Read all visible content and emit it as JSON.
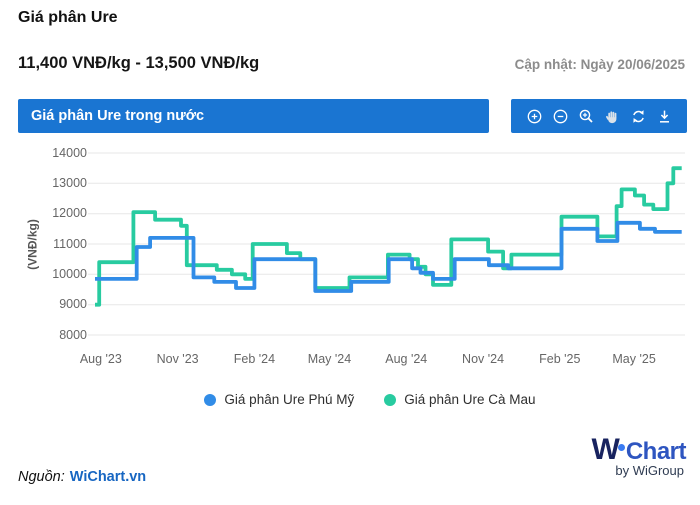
{
  "header": {
    "title": "Giá phân Ure",
    "price_range": "11,400 VNĐ/kg - 13,500 VNĐ/kg",
    "updated": "Cập nhật: Ngày 20/06/2025"
  },
  "panel": {
    "title": "Giá phân Ure trong nước",
    "toolbar": [
      "zoom-in",
      "zoom-out",
      "zoom-search",
      "pan",
      "reset",
      "download"
    ]
  },
  "chart_data": {
    "type": "line",
    "step": true,
    "title": "Giá phân Ure trong nước",
    "ylabel": "(VNĐ/kg)",
    "ylim": [
      8000,
      14000
    ],
    "y_ticks": [
      8000,
      9000,
      10000,
      11000,
      12000,
      13000,
      14000
    ],
    "x_domain": [
      "2023-07-25",
      "2025-07-01"
    ],
    "x_end": "2025-06-27",
    "x_ticks": [
      {
        "label": "Aug '23",
        "date": "2023-08-01"
      },
      {
        "label": "Nov '23",
        "date": "2023-11-01"
      },
      {
        "label": "Feb '24",
        "date": "2024-02-01"
      },
      {
        "label": "May '24",
        "date": "2024-05-01"
      },
      {
        "label": "Aug '24",
        "date": "2024-08-01"
      },
      {
        "label": "Nov '24",
        "date": "2024-11-01"
      },
      {
        "label": "Feb '25",
        "date": "2025-02-01"
      },
      {
        "label": "May '25",
        "date": "2025-05-01"
      }
    ],
    "grid": "horizontal",
    "legend_position": "bottom",
    "series": [
      {
        "name": "Giá phân Ure Cà Mau",
        "color": "#28CBA0",
        "points": [
          [
            "2023-07-25",
            9000
          ],
          [
            "2023-07-30",
            10400
          ],
          [
            "2023-09-09",
            12050
          ],
          [
            "2023-10-05",
            11800
          ],
          [
            "2023-11-05",
            11600
          ],
          [
            "2023-11-12",
            10300
          ],
          [
            "2023-12-18",
            10150
          ],
          [
            "2024-01-05",
            10000
          ],
          [
            "2024-01-21",
            9850
          ],
          [
            "2024-01-30",
            11000
          ],
          [
            "2024-03-11",
            10700
          ],
          [
            "2024-03-27",
            10500
          ],
          [
            "2024-04-14",
            9550
          ],
          [
            "2024-05-25",
            9900
          ],
          [
            "2024-07-10",
            10650
          ],
          [
            "2024-08-05",
            10500
          ],
          [
            "2024-08-15",
            10250
          ],
          [
            "2024-08-24",
            10000
          ],
          [
            "2024-09-02",
            9650
          ],
          [
            "2024-09-24",
            11150
          ],
          [
            "2024-11-07",
            10750
          ],
          [
            "2024-11-25",
            10200
          ],
          [
            "2024-12-05",
            10650
          ],
          [
            "2025-02-03",
            11900
          ],
          [
            "2025-03-18",
            11250
          ],
          [
            "2025-04-10",
            12250
          ],
          [
            "2025-04-16",
            12800
          ],
          [
            "2025-05-02",
            12600
          ],
          [
            "2025-05-13",
            12300
          ],
          [
            "2025-05-24",
            12150
          ],
          [
            "2025-06-10",
            13000
          ],
          [
            "2025-06-17",
            13500
          ]
        ]
      },
      {
        "name": "Giá phân Ure Phú Mỹ",
        "color": "#318CE7",
        "points": [
          [
            "2023-07-25",
            9850
          ],
          [
            "2023-09-13",
            10900
          ],
          [
            "2023-09-29",
            11200
          ],
          [
            "2023-11-20",
            9900
          ],
          [
            "2023-12-15",
            9750
          ],
          [
            "2024-01-10",
            9550
          ],
          [
            "2024-02-01",
            10500
          ],
          [
            "2024-04-14",
            9450
          ],
          [
            "2024-05-27",
            9750
          ],
          [
            "2024-07-11",
            10500
          ],
          [
            "2024-08-08",
            10200
          ],
          [
            "2024-08-18",
            10050
          ],
          [
            "2024-09-02",
            9850
          ],
          [
            "2024-09-28",
            10500
          ],
          [
            "2024-11-08",
            10300
          ],
          [
            "2024-12-01",
            10200
          ],
          [
            "2025-02-03",
            11500
          ],
          [
            "2025-03-18",
            11100
          ],
          [
            "2025-04-11",
            11700
          ],
          [
            "2025-05-08",
            11500
          ],
          [
            "2025-05-26",
            11400
          ]
        ]
      }
    ],
    "legend_order": [
      1,
      0
    ]
  },
  "footer": {
    "source_label": "Nguồn:",
    "source_link": "WiChart.vn",
    "logo": {
      "mark_w": "W",
      "mark_rest": "Chart",
      "byline": "by WiGroup"
    }
  },
  "colors": {
    "header_bar": "#1a75d2",
    "grid_line": "#e7e7e7",
    "axis_text": "#666666",
    "series_phu_my": "#318CE7",
    "series_ca_mau": "#28CBA0"
  }
}
